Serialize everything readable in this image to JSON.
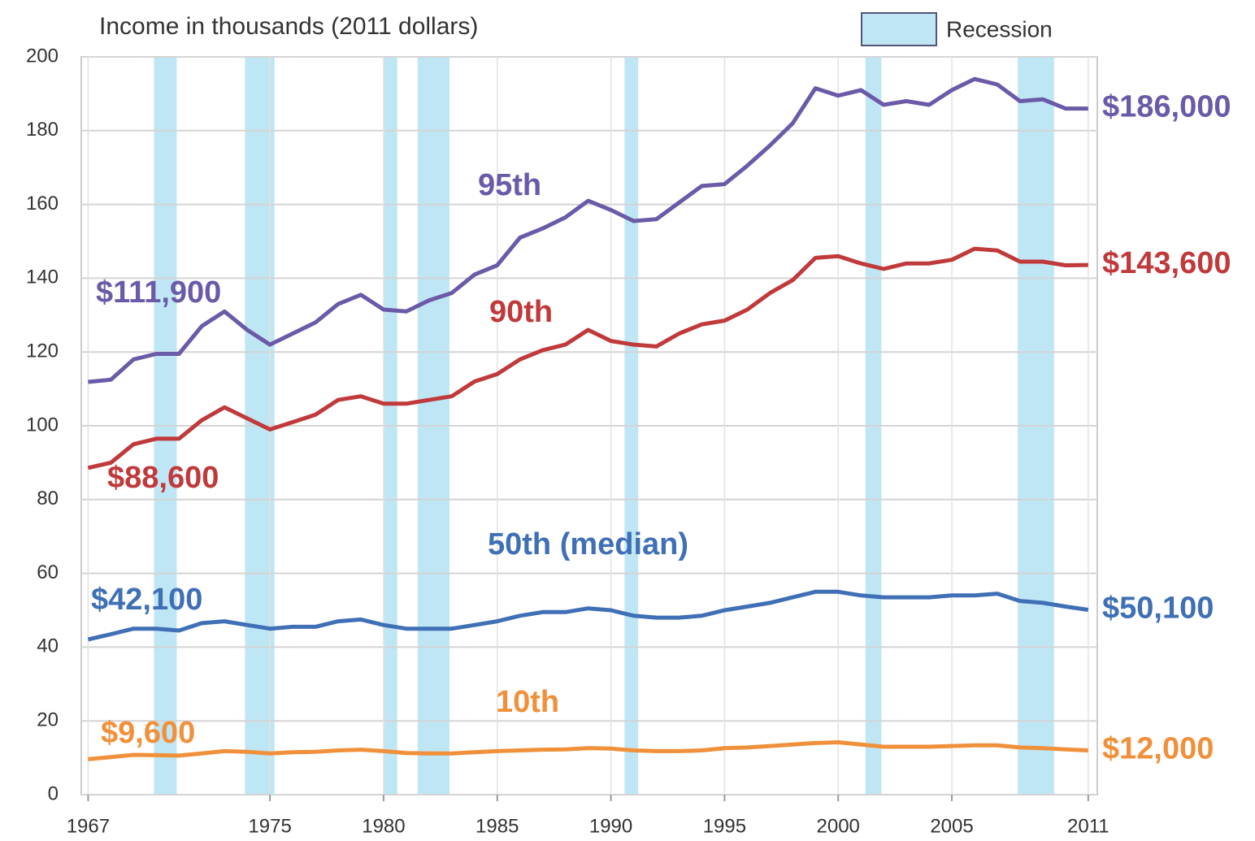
{
  "chart_data": {
    "type": "line",
    "title": "Income in thousands (2011 dollars)",
    "legend_label": "Recession",
    "recession_color": "#bfe6f5",
    "recessions": [
      [
        1969.9,
        1970.9
      ],
      [
        1973.9,
        1975.2
      ],
      [
        1980.0,
        1980.6
      ],
      [
        1981.5,
        1982.9
      ],
      [
        1990.6,
        1991.2
      ],
      [
        2001.2,
        2001.9
      ],
      [
        2007.9,
        2009.5
      ]
    ],
    "x": [
      1967,
      1968,
      1969,
      1970,
      1971,
      1972,
      1973,
      1974,
      1975,
      1976,
      1977,
      1978,
      1979,
      1980,
      1981,
      1982,
      1983,
      1984,
      1985,
      1986,
      1987,
      1988,
      1989,
      1990,
      1991,
      1992,
      1993,
      1994,
      1995,
      1996,
      1997,
      1998,
      1999,
      2000,
      2001,
      2002,
      2003,
      2004,
      2005,
      2006,
      2007,
      2008,
      2009,
      2010,
      2011
    ],
    "xlim": [
      1966.7,
      2011.4
    ],
    "xticks": [
      1967,
      1975,
      1980,
      1985,
      1990,
      1995,
      2000,
      2005,
      2011
    ],
    "ylim": [
      0,
      200
    ],
    "yticks": [
      0,
      20,
      40,
      60,
      80,
      100,
      120,
      140,
      160,
      180,
      200
    ],
    "grid": true,
    "series": [
      {
        "name": "95th",
        "color": "#6a5aa8",
        "start_label": "$111,900",
        "end_label": "$186,000",
        "values": [
          111.9,
          112.5,
          118,
          119.5,
          119.5,
          127,
          131,
          126,
          122,
          125,
          128,
          133,
          135.5,
          131.5,
          131,
          134,
          136,
          141,
          143.5,
          151,
          153.5,
          156.5,
          161,
          158.5,
          155.5,
          156,
          160.5,
          165,
          165.5,
          170.5,
          176,
          182,
          191.5,
          189.5,
          191,
          187,
          188,
          187,
          191,
          194,
          192.5,
          188,
          188.5,
          186,
          186.0
        ]
      },
      {
        "name": "90th",
        "color": "#c0393b",
        "start_label": "$88,600",
        "end_label": "$143,600",
        "values": [
          88.6,
          90,
          95,
          96.5,
          96.5,
          101.5,
          105,
          102,
          99,
          101,
          103,
          107,
          108,
          106,
          106,
          107,
          108,
          112,
          114,
          118,
          120.5,
          122,
          126,
          123,
          122,
          121.5,
          125,
          127.5,
          128.5,
          131.5,
          136,
          139.5,
          145.5,
          146,
          144,
          142.5,
          144,
          144,
          145,
          148,
          147.5,
          144.5,
          144.5,
          143.5,
          143.6
        ]
      },
      {
        "name": "50th (median)",
        "color": "#3f6fb5",
        "start_label": "$42,100",
        "end_label": "$50,100",
        "values": [
          42.1,
          43.5,
          45,
          45,
          44.5,
          46.5,
          47,
          46,
          45,
          45.5,
          45.5,
          47,
          47.5,
          46,
          45,
          45,
          45,
          46,
          47,
          48.5,
          49.5,
          49.5,
          50.5,
          50,
          48.5,
          48,
          48,
          48.5,
          50,
          51,
          52,
          53.5,
          55,
          55,
          54,
          53.5,
          53.5,
          53.5,
          54,
          54,
          54.5,
          52.5,
          52,
          51,
          50.1
        ]
      },
      {
        "name": "10th",
        "color": "#f0903a",
        "start_label": "$9,600",
        "end_label": "$12,000",
        "values": [
          9.6,
          10.2,
          10.8,
          10.7,
          10.6,
          11.2,
          11.8,
          11.6,
          11.2,
          11.5,
          11.6,
          12,
          12.2,
          11.8,
          11.3,
          11.2,
          11.2,
          11.5,
          11.8,
          12,
          12.2,
          12.3,
          12.6,
          12.5,
          12,
          11.8,
          11.8,
          12,
          12.6,
          12.8,
          13.2,
          13.6,
          14,
          14.2,
          13.6,
          13,
          13,
          13,
          13.2,
          13.4,
          13.4,
          12.8,
          12.6,
          12.3,
          12.0
        ]
      }
    ]
  }
}
